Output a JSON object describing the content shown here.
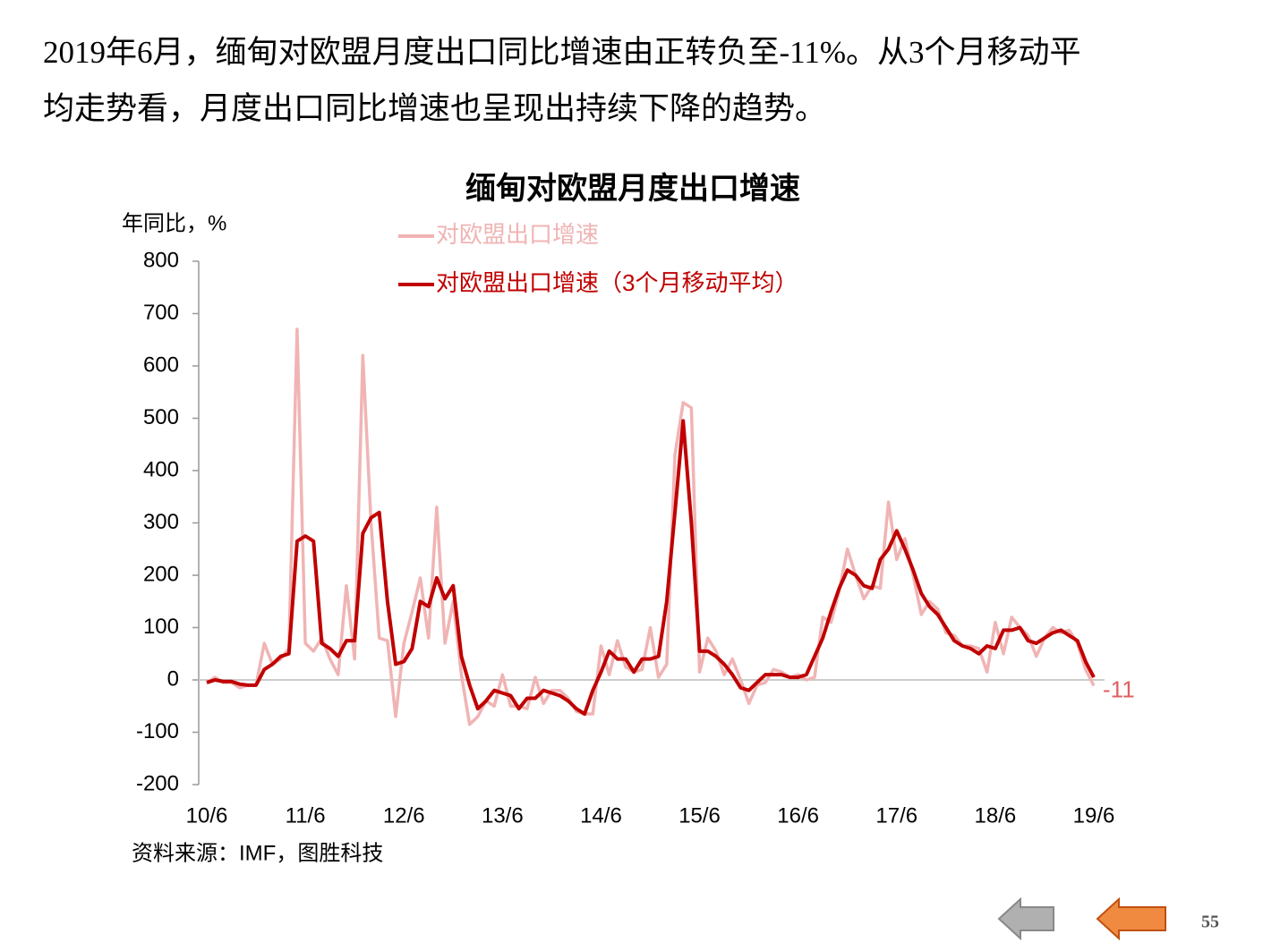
{
  "paragraph": [
    "2019年6月，缅甸对欧盟月度出口同比增速由正转负至-11%。从3个月移动平",
    "均走势看，月度出口同比增速也呈现出持续下降的趋势。"
  ],
  "chart_data": {
    "type": "line",
    "title": "缅甸对欧盟月度出口增速",
    "y_label": "年同比，%",
    "categories": [
      "10/6",
      null,
      null,
      null,
      null,
      null,
      null,
      null,
      null,
      null,
      null,
      null,
      "11/6",
      null,
      null,
      null,
      null,
      null,
      null,
      null,
      null,
      null,
      null,
      null,
      "12/6",
      null,
      null,
      null,
      null,
      null,
      null,
      null,
      null,
      null,
      null,
      null,
      "13/6",
      null,
      null,
      null,
      null,
      null,
      null,
      null,
      null,
      null,
      null,
      null,
      "14/6",
      null,
      null,
      null,
      null,
      null,
      null,
      null,
      null,
      null,
      null,
      null,
      "15/6",
      null,
      null,
      null,
      null,
      null,
      null,
      null,
      null,
      null,
      null,
      null,
      "16/6",
      null,
      null,
      null,
      null,
      null,
      null,
      null,
      null,
      null,
      null,
      null,
      "17/6",
      null,
      null,
      null,
      null,
      null,
      null,
      null,
      null,
      null,
      null,
      null,
      "18/6",
      null,
      null,
      null,
      null,
      null,
      null,
      null,
      null,
      null,
      null,
      null,
      "19/6"
    ],
    "series": [
      {
        "name": "对欧盟出口增速",
        "color": "#f0b4b4",
        "values": [
          -5,
          5,
          -5,
          -5,
          -15,
          -10,
          -10,
          70,
          30,
          40,
          60,
          670,
          70,
          55,
          80,
          40,
          10,
          180,
          40,
          620,
          300,
          80,
          75,
          -70,
          70,
          130,
          195,
          80,
          330,
          70,
          150,
          10,
          -85,
          -70,
          -40,
          -50,
          10,
          -50,
          -50,
          -55,
          5,
          -45,
          -20,
          -20,
          -35,
          -60,
          -65,
          -65,
          65,
          10,
          75,
          25,
          15,
          20,
          100,
          5,
          30,
          430,
          530,
          520,
          15,
          80,
          55,
          10,
          40,
          0,
          -45,
          -10,
          -5,
          20,
          15,
          5,
          10,
          0,
          5,
          120,
          110,
          170,
          250,
          200,
          155,
          180,
          175,
          340,
          230,
          270,
          200,
          125,
          150,
          135,
          90,
          85,
          65,
          65,
          60,
          15,
          110,
          50,
          120,
          100,
          85,
          45,
          80,
          100,
          90,
          95,
          70,
          20,
          -11
        ]
      },
      {
        "name": "对欧盟出口增速（3个月移动平均）",
        "color": "#c00000",
        "values": [
          -5,
          0,
          -3,
          -3,
          -8,
          -10,
          -10,
          20,
          30,
          45,
          50,
          265,
          275,
          265,
          70,
          60,
          45,
          75,
          75,
          280,
          310,
          320,
          150,
          30,
          35,
          60,
          150,
          140,
          195,
          155,
          180,
          45,
          -10,
          -55,
          -40,
          -20,
          -25,
          -30,
          -55,
          -35,
          -35,
          -20,
          -25,
          -30,
          -40,
          -55,
          -65,
          -20,
          15,
          55,
          40,
          40,
          15,
          40,
          40,
          45,
          150,
          320,
          495,
          300,
          55,
          55,
          45,
          30,
          10,
          -15,
          -20,
          -5,
          10,
          10,
          10,
          5,
          5,
          10,
          45,
          80,
          130,
          175,
          210,
          200,
          180,
          175,
          230,
          250,
          285,
          250,
          210,
          165,
          140,
          125,
          100,
          75,
          65,
          60,
          50,
          65,
          60,
          95,
          95,
          100,
          75,
          70,
          80,
          90,
          95,
          85,
          75,
          35,
          5
        ]
      }
    ],
    "annotation": "-11",
    "ylim": [
      -200,
      800
    ],
    "yticks": [
      -200,
      -100,
      0,
      100,
      200,
      300,
      400,
      500,
      600,
      700,
      800
    ],
    "grid": false,
    "legend": "upper left"
  },
  "source": "资料来源：IMF，图胜科技",
  "page_number": "55"
}
